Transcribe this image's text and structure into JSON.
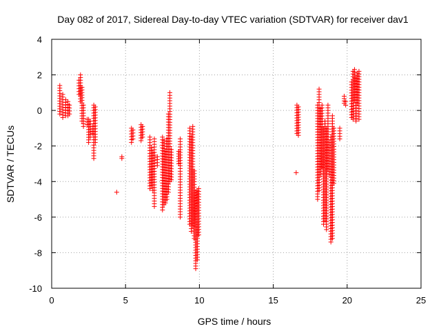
{
  "chart_data": {
    "type": "scatter",
    "title": "Day 082 of 2017, Sidereal Day-to-day VTEC variation (SDTVAR) for receiver dav1",
    "xlabel": "GPS time / hours",
    "ylabel": "SDTVAR / TECUs",
    "xlim": [
      0,
      25
    ],
    "ylim": [
      -10,
      4
    ],
    "xticks": [
      0,
      5,
      10,
      15,
      20,
      25
    ],
    "yticks": [
      4,
      2,
      0,
      -2,
      -4,
      -6,
      -8,
      -10
    ],
    "grid": true,
    "marker": "+",
    "color": "#ff0000",
    "clusters": [
      {
        "x": 0.55,
        "ymin": -0.2,
        "ymax": 1.4
      },
      {
        "x": 0.75,
        "ymin": -0.4,
        "ymax": 0.9
      },
      {
        "x": 0.95,
        "ymin": -0.3,
        "ymax": 0.6
      },
      {
        "x": 1.1,
        "ymin": -0.3,
        "ymax": 0.5
      },
      {
        "x": 1.2,
        "ymin": -0.2,
        "ymax": 0.3
      },
      {
        "x": 1.85,
        "ymin": 0.9,
        "ymax": 1.7
      },
      {
        "x": 1.95,
        "ymin": 0.5,
        "ymax": 2.0
      },
      {
        "x": 2.05,
        "ymin": -0.6,
        "ymax": 1.3
      },
      {
        "x": 2.15,
        "ymin": -0.9,
        "ymax": 0.3
      },
      {
        "x": 2.4,
        "ymin": -0.8,
        "ymax": -0.5
      },
      {
        "x": 2.5,
        "ymin": -1.8,
        "ymax": -0.5
      },
      {
        "x": 2.6,
        "ymin": -1.5,
        "ymax": -0.6
      },
      {
        "x": 2.75,
        "ymin": -1.3,
        "ymax": -0.9
      },
      {
        "x": 2.85,
        "ymin": -2.7,
        "ymax": 0.3
      },
      {
        "x": 2.95,
        "ymin": -1.8,
        "ymax": 0.2
      },
      {
        "x": 4.4,
        "ymin": -4.6,
        "ymax": -4.6
      },
      {
        "x": 4.75,
        "ymin": -2.7,
        "ymax": -2.6
      },
      {
        "x": 5.4,
        "ymin": -1.8,
        "ymax": -1.0
      },
      {
        "x": 5.5,
        "ymin": -1.6,
        "ymax": -1.1
      },
      {
        "x": 6.05,
        "ymin": -1.7,
        "ymax": -0.8
      },
      {
        "x": 6.15,
        "ymin": -1.5,
        "ymax": -0.9
      },
      {
        "x": 6.65,
        "ymin": -4.4,
        "ymax": -1.5
      },
      {
        "x": 6.75,
        "ymin": -4.2,
        "ymax": -2.1
      },
      {
        "x": 6.85,
        "ymin": -4.5,
        "ymax": -2.4
      },
      {
        "x": 6.95,
        "ymin": -5.4,
        "ymax": -1.6
      },
      {
        "x": 7.15,
        "ymin": -3.1,
        "ymax": -2.6
      },
      {
        "x": 7.5,
        "ymin": -5.6,
        "ymax": -1.5
      },
      {
        "x": 7.6,
        "ymin": -5.3,
        "ymax": -1.7
      },
      {
        "x": 7.7,
        "ymin": -5.2,
        "ymax": -2.3
      },
      {
        "x": 7.8,
        "ymin": -5.0,
        "ymax": -1.6
      },
      {
        "x": 7.9,
        "ymin": -4.6,
        "ymax": -0.2
      },
      {
        "x": 8.0,
        "ymin": -4.0,
        "ymax": 1.0
      },
      {
        "x": 8.1,
        "ymin": -3.9,
        "ymax": -2.2
      },
      {
        "x": 8.6,
        "ymin": -3.0,
        "ymax": -2.3
      },
      {
        "x": 8.7,
        "ymin": -6.0,
        "ymax": -1.6
      },
      {
        "x": 9.35,
        "ymin": -6.4,
        "ymax": -1.0
      },
      {
        "x": 9.45,
        "ymin": -6.8,
        "ymax": -1.5
      },
      {
        "x": 9.55,
        "ymin": -6.5,
        "ymax": -0.9
      },
      {
        "x": 9.65,
        "ymin": -7.2,
        "ymax": -3.4
      },
      {
        "x": 9.75,
        "ymin": -8.9,
        "ymax": -4.6
      },
      {
        "x": 9.85,
        "ymin": -8.4,
        "ymax": -4.5
      },
      {
        "x": 9.95,
        "ymin": -7.0,
        "ymax": -4.4
      },
      {
        "x": 16.55,
        "ymin": -3.5,
        "ymax": -3.5
      },
      {
        "x": 16.6,
        "ymin": -1.3,
        "ymax": 0.3
      },
      {
        "x": 16.7,
        "ymin": -1.4,
        "ymax": 0.2
      },
      {
        "x": 18.0,
        "ymin": -5.0,
        "ymax": 0.3
      },
      {
        "x": 18.1,
        "ymin": -4.5,
        "ymax": 1.2
      },
      {
        "x": 18.2,
        "ymin": -3.6,
        "ymax": 0.1
      },
      {
        "x": 18.3,
        "ymin": -3.2,
        "ymax": 0.3
      },
      {
        "x": 18.4,
        "ymin": -6.4,
        "ymax": -1.0
      },
      {
        "x": 18.5,
        "ymin": -6.2,
        "ymax": -0.6
      },
      {
        "x": 18.6,
        "ymin": -6.7,
        "ymax": -1.0
      },
      {
        "x": 18.7,
        "ymin": -3.3,
        "ymax": 0.3
      },
      {
        "x": 18.8,
        "ymin": -3.6,
        "ymax": -1.8
      },
      {
        "x": 18.9,
        "ymin": -7.4,
        "ymax": -1.5
      },
      {
        "x": 19.0,
        "ymin": -7.2,
        "ymax": -0.3
      },
      {
        "x": 19.1,
        "ymin": -4.1,
        "ymax": -1.0
      },
      {
        "x": 19.5,
        "ymin": -1.6,
        "ymax": -1.0
      },
      {
        "x": 19.8,
        "ymin": 0.4,
        "ymax": 0.8
      },
      {
        "x": 19.9,
        "ymin": 0.3,
        "ymax": 0.5
      },
      {
        "x": 20.3,
        "ymin": -0.4,
        "ymax": 1.6
      },
      {
        "x": 20.4,
        "ymin": -0.5,
        "ymax": 2.2
      },
      {
        "x": 20.5,
        "ymin": 0.6,
        "ymax": 2.3
      },
      {
        "x": 20.6,
        "ymin": -0.6,
        "ymax": 1.8
      },
      {
        "x": 20.7,
        "ymin": 0.4,
        "ymax": 2.1
      },
      {
        "x": 20.8,
        "ymin": -0.5,
        "ymax": 2.2
      }
    ]
  }
}
